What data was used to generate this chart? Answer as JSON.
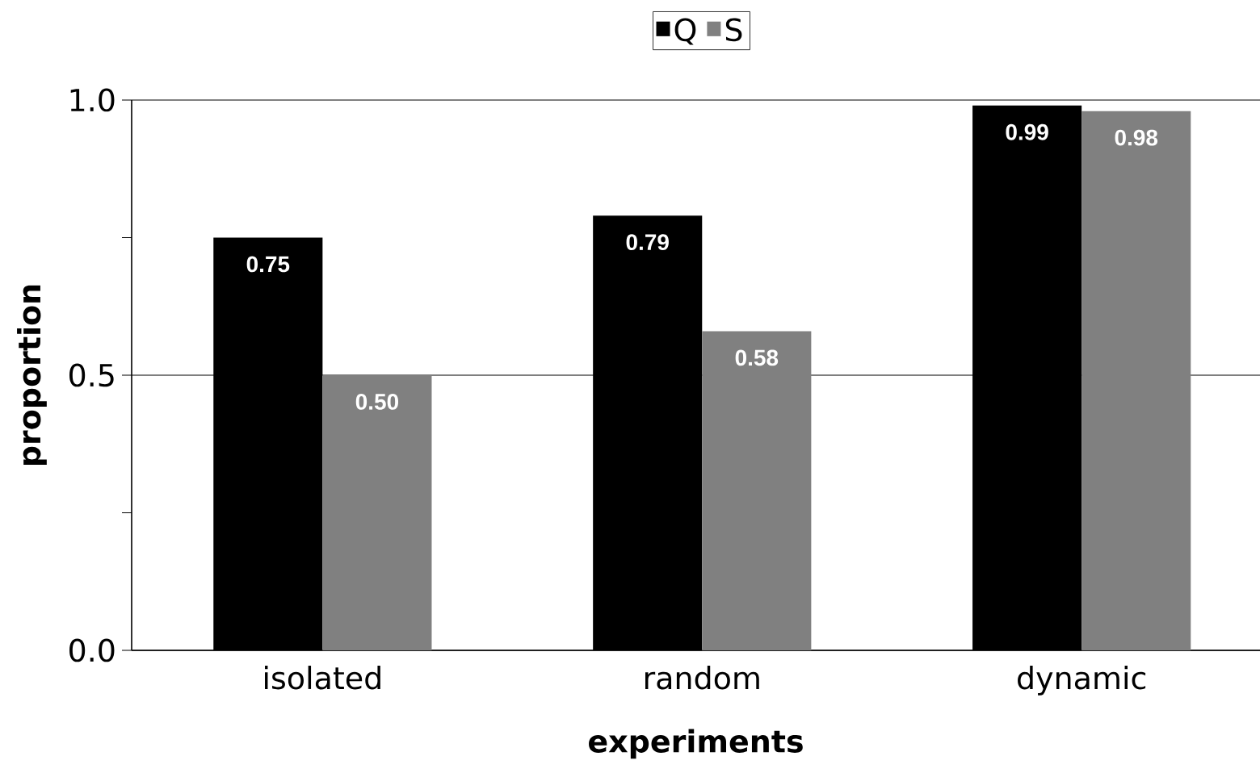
{
  "chart_data": {
    "type": "bar",
    "xlabel": "experiments",
    "ylabel": "proportion",
    "categories": [
      "isolated",
      "random",
      "dynamic"
    ],
    "series": [
      {
        "name": "Q",
        "color": "#000000",
        "values": [
          0.75,
          0.79,
          0.99
        ],
        "value_labels": [
          "0.75",
          "0.79",
          "0.99"
        ]
      },
      {
        "name": "S",
        "color": "#808080",
        "values": [
          0.5,
          0.58,
          0.98
        ],
        "value_labels": [
          "0.50",
          "0.58",
          "0.98"
        ]
      }
    ],
    "ylim": [
      0,
      1
    ],
    "yticks": [
      {
        "value": 0,
        "label": "0.0"
      },
      {
        "value": 0.25,
        "label": null
      },
      {
        "value": 0.5,
        "label": "0.5"
      },
      {
        "value": 0.75,
        "label": null
      },
      {
        "value": 1,
        "label": "1.0"
      }
    ],
    "grid": "y",
    "legend": "top"
  }
}
